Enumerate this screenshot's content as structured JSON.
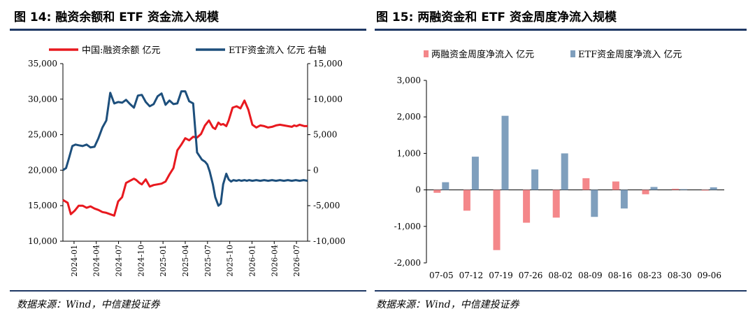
{
  "figures": {
    "left": {
      "title": "图 14: 融资余额和 ETF 资金流入规模",
      "source": "数据来源：Wind，中信建投证券"
    },
    "right": {
      "title": "图 15: 两融资金和 ETF 资金周度净流入规模",
      "source": "数据来源：Wind，中信建投证券"
    }
  },
  "chart_data": [
    {
      "type": "line",
      "title": "图 14: 融资余额和 ETF 资金流入规模",
      "x_labels": [
        "2024-01",
        "2024-04",
        "2024-07",
        "2024-10",
        "2025-01",
        "2025-04",
        "2025-07",
        "2025-10",
        "2026-01",
        "2026-04",
        "2026-07"
      ],
      "x_range": [
        0,
        31
      ],
      "left_axis": {
        "ylim": [
          10000,
          35000
        ],
        "ticks": [
          "10,000",
          "15,000",
          "20,000",
          "25,000",
          "30,000",
          "35,000"
        ],
        "tick_values": [
          10000,
          15000,
          20000,
          25000,
          30000,
          35000
        ]
      },
      "right_axis": {
        "ylim": [
          -10000,
          15000
        ],
        "ticks": [
          "-10,000",
          "-5,000",
          "0",
          "5,000",
          "10,000",
          "15,000"
        ],
        "tick_values": [
          -10000,
          -5000,
          0,
          5000,
          10000,
          15000
        ]
      },
      "legend_position": "top",
      "grid": false,
      "series": [
        {
          "name": "中国:融资余额  亿元",
          "axis": "left",
          "color": "#e8191f",
          "x": [
            0,
            0.6,
            1,
            1.5,
            2,
            2.5,
            3,
            3.5,
            4,
            4.5,
            5,
            5.5,
            6,
            6.5,
            7,
            7.5,
            8,
            8.5,
            9,
            9.3,
            9.7,
            10,
            10.5,
            11,
            11.5,
            12,
            12.5,
            13,
            13.5,
            14,
            14.5,
            15,
            15.5,
            16,
            16.5,
            17,
            17.5,
            18,
            18.5,
            19,
            19.3,
            19.7,
            20,
            20.3,
            20.7,
            21,
            21.5,
            22,
            22.5,
            23,
            23.5,
            24,
            24.5,
            25,
            25.5,
            26,
            26.5,
            27,
            27.5,
            28,
            28.5,
            29,
            29.3,
            29.6,
            30,
            30.3,
            30.6,
            31
          ],
          "y": [
            15800,
            15400,
            13800,
            14300,
            15000,
            15000,
            14700,
            14900,
            14600,
            14400,
            14100,
            14000,
            13800,
            13600,
            15600,
            16200,
            18200,
            18500,
            18800,
            18600,
            18200,
            18000,
            18700,
            17700,
            17900,
            18000,
            18100,
            18400,
            19400,
            20300,
            22800,
            23600,
            24500,
            24200,
            24700,
            24600,
            25100,
            26300,
            27000,
            26000,
            25800,
            26700,
            26400,
            26500,
            26200,
            27000,
            28800,
            29000,
            28700,
            29800,
            28500,
            26400,
            26000,
            26300,
            26200,
            26000,
            26100,
            26300,
            26400,
            26300,
            26200,
            26100,
            26300,
            26200,
            26400,
            26300,
            26200,
            26200
          ]
        },
        {
          "name": "ETF资金流入  亿元  右轴",
          "axis": "right",
          "color": "#1d4f7c",
          "x": [
            0,
            0.4,
            0.8,
            1.2,
            1.6,
            2,
            2.5,
            3,
            3.5,
            4,
            4.5,
            5,
            5.5,
            6,
            6.5,
            7,
            7.5,
            8,
            8.5,
            9,
            9.5,
            10,
            10.5,
            11,
            11.5,
            12,
            12.5,
            13,
            13.5,
            14,
            14.5,
            15,
            15.5,
            16,
            16.5,
            17,
            17.3,
            17.6,
            18,
            18.3,
            18.6,
            19,
            19.3,
            19.7,
            20,
            20.3,
            20.7,
            21,
            21.3,
            21.6,
            22,
            22.3,
            22.6,
            23,
            23.3,
            23.6,
            24,
            24.5,
            25,
            25.5,
            26,
            26.5,
            27,
            27.5,
            28,
            28.5,
            29,
            29.5,
            30,
            30.5,
            31
          ],
          "y": [
            0,
            300,
            1800,
            3400,
            3600,
            3500,
            3400,
            3600,
            3200,
            3300,
            4500,
            6000,
            7000,
            10900,
            9400,
            9600,
            9500,
            9900,
            9300,
            8800,
            10500,
            10600,
            9600,
            9000,
            9300,
            10400,
            10800,
            9200,
            9800,
            9300,
            9400,
            11100,
            11100,
            9700,
            9400,
            2500,
            2000,
            1500,
            1200,
            800,
            -200,
            -2000,
            -3800,
            -5000,
            -4700,
            -2000,
            -500,
            -1300,
            -1600,
            -1400,
            -1500,
            -1400,
            -1500,
            -1400,
            -1500,
            -1400,
            -1500,
            -1400,
            -1500,
            -1400,
            -1500,
            -1400,
            -1500,
            -1400,
            -1500,
            -1400,
            -1500,
            -1400,
            -1500,
            -1400,
            -1500
          ]
        }
      ]
    },
    {
      "type": "bar",
      "title": "图 15: 两融资金和 ETF 资金周度净流入规模",
      "categories": [
        "07-05",
        "07-12",
        "07-19",
        "07-26",
        "08-02",
        "08-09",
        "08-16",
        "08-23",
        "08-30",
        "09-06"
      ],
      "ylim": [
        -2000,
        3000
      ],
      "ticks": [
        "-2,000",
        "-1,000",
        "0",
        "1,000",
        "2,000",
        "3,000"
      ],
      "tick_values": [
        -2000,
        -1000,
        0,
        1000,
        2000,
        3000
      ],
      "legend_position": "top",
      "grid": false,
      "series": [
        {
          "name": "两融资金周度净流入  亿元",
          "color": "#f4878a",
          "values": [
            -80,
            -570,
            -1650,
            -900,
            -760,
            320,
            230,
            -120,
            30,
            -10
          ]
        },
        {
          "name": "ETF资金周度净流入  亿元",
          "color": "#7f9fbd",
          "values": [
            210,
            910,
            2030,
            560,
            1000,
            -740,
            -510,
            80,
            20,
            70
          ]
        }
      ]
    }
  ]
}
